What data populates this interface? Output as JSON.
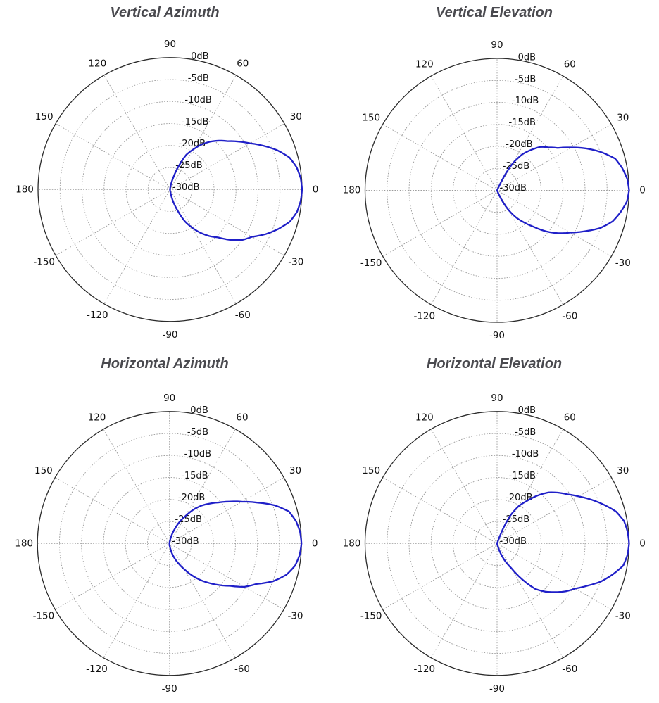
{
  "figure": {
    "background": "#ffffff",
    "curve_color": "#1f1fc8",
    "grid_color": "#9a9a9a",
    "outline_color": "#2b2b2b",
    "label_color": "#111111",
    "title_color": "#4a4a4f"
  },
  "chart_data": [
    {
      "type": "line",
      "projection": "polar",
      "title": "Vertical Azimuth",
      "units": "dB",
      "grid": true,
      "radial_axis": {
        "min": -30,
        "max": 0,
        "step": 5,
        "tick_labels": [
          "0dB",
          "-5dB",
          "-10dB",
          "-15dB",
          "-20dB",
          "-25dB",
          "-30dB"
        ]
      },
      "angle_axis": {
        "grid_step_deg": 30,
        "tick_labels_deg": [
          0,
          30,
          60,
          90,
          120,
          150,
          180,
          -150,
          -120,
          -90,
          -60,
          -30
        ]
      },
      "series": [
        {
          "name": "gain_db",
          "points_deg_db": [
            [
              -180,
              -30
            ],
            [
              -120,
              -30
            ],
            [
              -90,
              -30
            ],
            [
              -85,
              -29.8
            ],
            [
              -80,
              -29
            ],
            [
              -75,
              -27
            ],
            [
              -70,
              -24.8
            ],
            [
              -65,
              -22
            ],
            [
              -60,
              -20
            ],
            [
              -55,
              -18
            ],
            [
              -50,
              -16.2
            ],
            [
              -45,
              -14.6
            ],
            [
              -40,
              -12.2
            ],
            [
              -35,
              -10
            ],
            [
              -30,
              -8.5
            ],
            [
              -25,
              -6
            ],
            [
              -20,
              -3.8
            ],
            [
              -15,
              -1.8
            ],
            [
              -10,
              -0.7
            ],
            [
              -5,
              -0.2
            ],
            [
              0,
              0
            ],
            [
              5,
              -0.2
            ],
            [
              10,
              -0.8
            ],
            [
              15,
              -1.9
            ],
            [
              20,
              -4
            ],
            [
              25,
              -6.5
            ],
            [
              30,
              -9
            ],
            [
              35,
              -11
            ],
            [
              40,
              -12.9
            ],
            [
              45,
              -14.3
            ],
            [
              50,
              -15.8
            ],
            [
              55,
              -17.5
            ],
            [
              60,
              -19.5
            ],
            [
              65,
              -21.3
            ],
            [
              70,
              -24.5
            ],
            [
              75,
              -27.3
            ],
            [
              80,
              -29
            ],
            [
              85,
              -29.8
            ],
            [
              90,
              -30
            ],
            [
              120,
              -30
            ],
            [
              180,
              -30
            ]
          ]
        }
      ]
    },
    {
      "type": "line",
      "projection": "polar",
      "title": "Vertical Elevation",
      "units": "dB",
      "grid": true,
      "radial_axis": {
        "min": -30,
        "max": 0,
        "step": 5,
        "tick_labels": [
          "0dB",
          "-5dB",
          "-10dB",
          "-15dB",
          "-20dB",
          "-25dB",
          "-30dB"
        ]
      },
      "angle_axis": {
        "grid_step_deg": 30,
        "tick_labels_deg": [
          0,
          30,
          60,
          90,
          120,
          150,
          180,
          -150,
          -120,
          -90,
          -60,
          -30
        ]
      },
      "series": [
        {
          "name": "gain_db",
          "points_deg_db": [
            [
              -180,
              -30
            ],
            [
              -90,
              -30
            ],
            [
              -68,
              -30
            ],
            [
              -65,
              -28
            ],
            [
              -60,
              -25
            ],
            [
              -55,
              -22.5
            ],
            [
              -50,
              -20.5
            ],
            [
              -45,
              -18.3
            ],
            [
              -40,
              -15.5
            ],
            [
              -35,
              -13
            ],
            [
              -30,
              -10.8
            ],
            [
              -25,
              -8
            ],
            [
              -20,
              -5
            ],
            [
              -15,
              -2.8
            ],
            [
              -10,
              -1.5
            ],
            [
              -5,
              -0.4
            ],
            [
              0,
              0
            ],
            [
              5,
              -0.3
            ],
            [
              10,
              -1.1
            ],
            [
              15,
              -2.2
            ],
            [
              20,
              -4.7
            ],
            [
              25,
              -7.5
            ],
            [
              30,
              -10.5
            ],
            [
              35,
              -13.2
            ],
            [
              40,
              -14.8
            ],
            [
              45,
              -16
            ],
            [
              50,
              -18
            ],
            [
              55,
              -20
            ],
            [
              60,
              -23
            ],
            [
              63,
              -26
            ],
            [
              66,
              -30
            ],
            [
              90,
              -30
            ],
            [
              180,
              -30
            ]
          ]
        }
      ]
    },
    {
      "type": "line",
      "projection": "polar",
      "title": "Horizontal Azimuth",
      "units": "dB",
      "grid": true,
      "radial_axis": {
        "min": -30,
        "max": 0,
        "step": 5,
        "tick_labels": [
          "0dB",
          "-5dB",
          "-10dB",
          "-15dB",
          "-20dB",
          "-25dB",
          "-30dB"
        ]
      },
      "angle_axis": {
        "grid_step_deg": 30,
        "tick_labels_deg": [
          0,
          30,
          60,
          90,
          120,
          150,
          180,
          -150,
          -120,
          -90,
          -60,
          -30
        ]
      },
      "series": [
        {
          "name": "gain_db",
          "points_deg_db": [
            [
              -180,
              -30
            ],
            [
              -120,
              -30
            ],
            [
              -90,
              -30
            ],
            [
              -85,
              -29.5
            ],
            [
              -80,
              -28.8
            ],
            [
              -75,
              -27.5
            ],
            [
              -70,
              -26.2
            ],
            [
              -65,
              -24.8
            ],
            [
              -60,
              -23.2
            ],
            [
              -55,
              -21.2
            ],
            [
              -50,
              -19.2
            ],
            [
              -45,
              -17.3
            ],
            [
              -40,
              -15.3
            ],
            [
              -35,
              -13.2
            ],
            [
              -30,
              -10.3
            ],
            [
              -25,
              -8.2
            ],
            [
              -20,
              -4.9
            ],
            [
              -15,
              -2.5
            ],
            [
              -10,
              -1
            ],
            [
              -5,
              -0.3
            ],
            [
              0,
              0
            ],
            [
              5,
              -0.2
            ],
            [
              10,
              -0.8
            ],
            [
              15,
              -1.9
            ],
            [
              20,
              -4.6
            ],
            [
              25,
              -8
            ],
            [
              30,
              -11
            ],
            [
              35,
              -13.4
            ],
            [
              40,
              -15.5
            ],
            [
              45,
              -17.2
            ],
            [
              50,
              -18.8
            ],
            [
              55,
              -20.7
            ],
            [
              60,
              -22.9
            ],
            [
              65,
              -24.6
            ],
            [
              70,
              -26.5
            ],
            [
              75,
              -28
            ],
            [
              80,
              -29.3
            ],
            [
              85,
              -30
            ],
            [
              120,
              -30
            ],
            [
              180,
              -30
            ]
          ]
        }
      ]
    },
    {
      "type": "line",
      "projection": "polar",
      "title": "Horizontal Elevation",
      "units": "dB",
      "grid": true,
      "radial_axis": {
        "min": -30,
        "max": 0,
        "step": 5,
        "tick_labels": [
          "0dB",
          "-5dB",
          "-10dB",
          "-15dB",
          "-20dB",
          "-25dB",
          "-30dB"
        ]
      },
      "angle_axis": {
        "grid_step_deg": 30,
        "tick_labels_deg": [
          0,
          30,
          60,
          90,
          120,
          150,
          180,
          -150,
          -120,
          -90,
          -60,
          -30
        ]
      },
      "series": [
        {
          "name": "gain_db",
          "points_deg_db": [
            [
              -180,
              -30
            ],
            [
              -90,
              -30
            ],
            [
              -78,
              -30
            ],
            [
              -75,
              -29.5
            ],
            [
              -70,
              -27.5
            ],
            [
              -65,
              -25.5
            ],
            [
              -60,
              -23.5
            ],
            [
              -55,
              -20
            ],
            [
              -50,
              -16.5
            ],
            [
              -45,
              -14.5
            ],
            [
              -40,
              -12.8
            ],
            [
              -35,
              -11
            ],
            [
              -30,
              -9.5
            ],
            [
              -25,
              -7.3
            ],
            [
              -20,
              -4.8
            ],
            [
              -15,
              -2.8
            ],
            [
              -10,
              -0.9
            ],
            [
              -5,
              -0.25
            ],
            [
              0,
              0
            ],
            [
              5,
              -0.2
            ],
            [
              10,
              -0.7
            ],
            [
              15,
              -2
            ],
            [
              20,
              -4.2
            ],
            [
              25,
              -6.4
            ],
            [
              30,
              -8.6
            ],
            [
              35,
              -10.5
            ],
            [
              40,
              -12
            ],
            [
              45,
              -13.6
            ],
            [
              50,
              -15.8
            ],
            [
              55,
              -18.2
            ],
            [
              60,
              -20.2
            ],
            [
              65,
              -23.2
            ],
            [
              68,
              -26.5
            ],
            [
              70,
              -28.5
            ],
            [
              72,
              -30
            ],
            [
              90,
              -30
            ],
            [
              180,
              -30
            ]
          ]
        }
      ]
    }
  ]
}
